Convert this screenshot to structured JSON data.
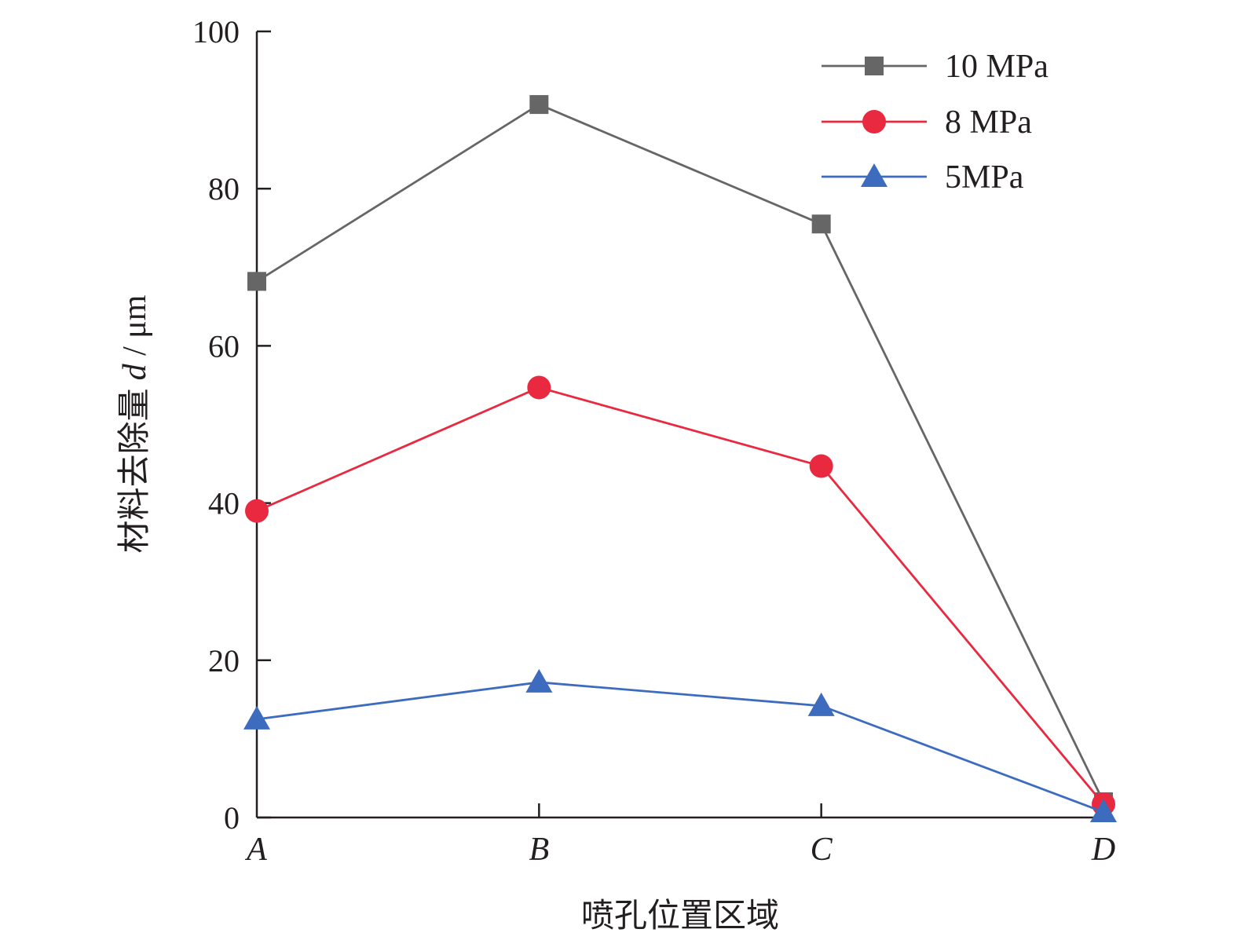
{
  "chart_data": {
    "type": "line",
    "xlabel": "喷孔位置区域",
    "ylabel": "材料去除量",
    "ylabel_var": "d",
    "ylabel_unit": " / μm",
    "categories": [
      "A",
      "B",
      "C",
      "D"
    ],
    "ylim": [
      0,
      100
    ],
    "yticks": [
      0,
      20,
      40,
      60,
      80,
      100
    ],
    "grid": false,
    "legend_position": "top-right",
    "series": [
      {
        "name": "10 MPa",
        "values": [
          68.2,
          90.7,
          75.5,
          2.0
        ],
        "color": "#666666",
        "marker": "square"
      },
      {
        "name": "8 MPa",
        "values": [
          39.0,
          54.7,
          44.7,
          1.7
        ],
        "color": "#e8293f",
        "marker": "circle"
      },
      {
        "name": "5MPa",
        "values": [
          12.5,
          17.2,
          14.2,
          0.7
        ],
        "color": "#3d6cbf",
        "marker": "triangle"
      }
    ]
  }
}
